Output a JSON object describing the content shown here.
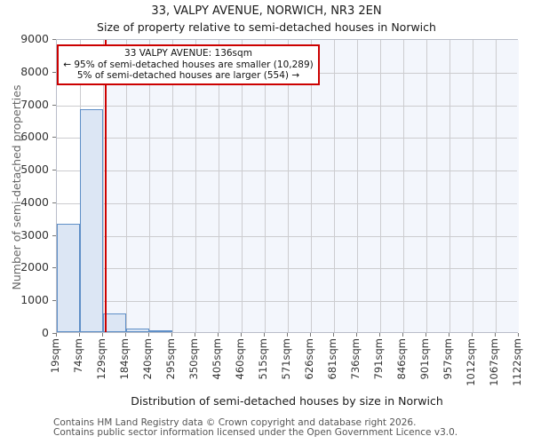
{
  "page": {
    "title": "33, VALPY AVENUE, NORWICH, NR3 2EN",
    "subtitle": "Size of property relative to semi-detached houses in Norwich"
  },
  "annotation": {
    "line1": "33 VALPY AVENUE: 136sqm",
    "line2": "← 95% of semi-detached houses are smaller (10,289)",
    "line3": "5% of semi-detached houses are larger (554) →"
  },
  "chart_data": {
    "type": "bar",
    "title": "33, VALPY AVENUE, NORWICH, NR3 2EN",
    "subtitle": "Size of property relative to semi-detached houses in Norwich",
    "xlabel": "Distribution of semi-detached houses by size in Norwich",
    "ylabel": "Number of semi-detached properties",
    "bin_edges_sqm": [
      19,
      74,
      129,
      184,
      240,
      295,
      350,
      405,
      460,
      515,
      571,
      626,
      681,
      736,
      791,
      846,
      901,
      957,
      1012,
      1067,
      1122
    ],
    "x_tick_labels": [
      "19sqm",
      "74sqm",
      "129sqm",
      "184sqm",
      "240sqm",
      "295sqm",
      "350sqm",
      "405sqm",
      "460sqm",
      "515sqm",
      "571sqm",
      "626sqm",
      "681sqm",
      "736sqm",
      "791sqm",
      "846sqm",
      "901sqm",
      "957sqm",
      "1012sqm",
      "1067sqm",
      "1122sqm"
    ],
    "values": [
      3320,
      6830,
      580,
      100,
      30,
      0,
      0,
      0,
      0,
      0,
      0,
      0,
      0,
      0,
      0,
      0,
      0,
      0,
      0,
      0
    ],
    "y_ticks": [
      0,
      1000,
      2000,
      3000,
      4000,
      5000,
      6000,
      7000,
      8000,
      9000
    ],
    "ylim": [
      0,
      9000
    ],
    "grid": true,
    "legend": false,
    "marker": {
      "label": "33 VALPY AVENUE",
      "value_sqm": 136,
      "smaller_pct": 95,
      "smaller_count": "10,289",
      "larger_pct": 5,
      "larger_count": "554"
    },
    "colors": {
      "bar_fill": "#dce6f4",
      "bar_border": "#5f8fc7",
      "marker_line": "#cc0000",
      "shade_right_of_marker": "#f3f6fc",
      "gridline": "#cccccf"
    }
  },
  "footer": {
    "line1": "Contains HM Land Registry data © Crown copyright and database right 2026.",
    "line2": "Contains public sector information licensed under the Open Government Licence v3.0."
  }
}
